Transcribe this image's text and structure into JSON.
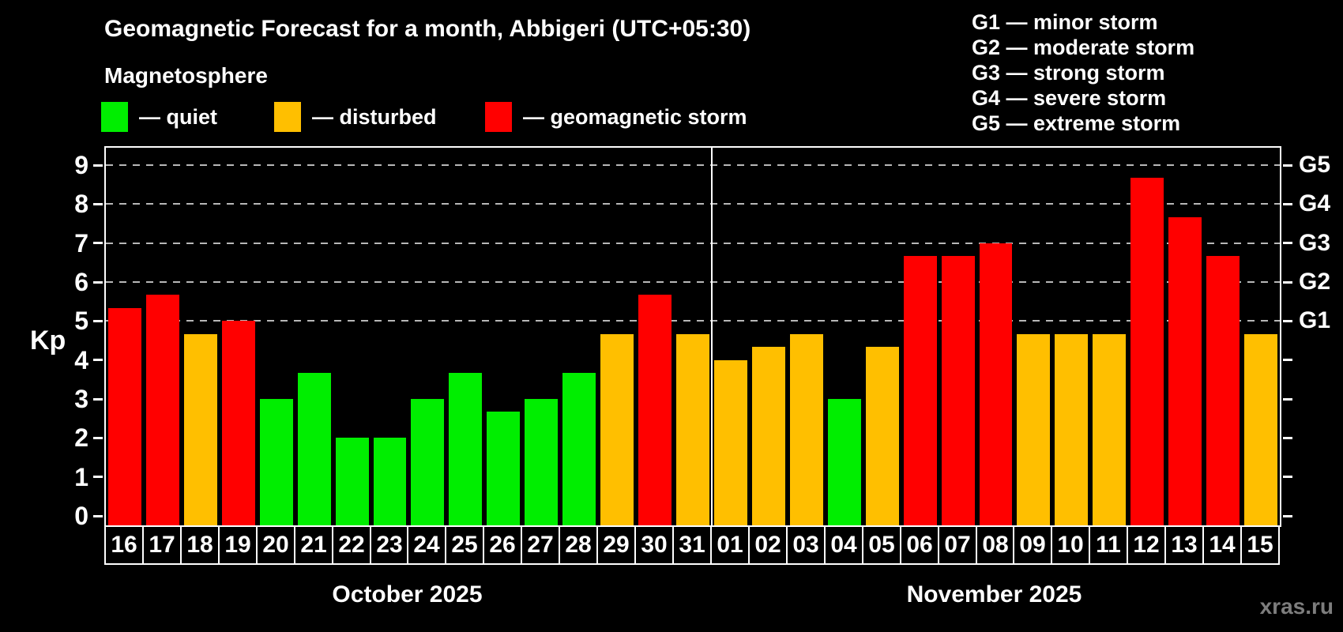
{
  "header": {
    "title": "Geomagnetic Forecast for a month, Abbigeri (UTC+05:30)",
    "subtitle": "Magnetosphere",
    "legend": [
      {
        "key": "quiet",
        "label": "— quiet",
        "color": "#00ee00"
      },
      {
        "key": "disturbed",
        "label": "— disturbed",
        "color": "#ffbf00"
      },
      {
        "key": "storm",
        "label": "— geomagnetic storm",
        "color": "#ff0000"
      }
    ],
    "g_legend": [
      "G1 — minor storm",
      "G2 — moderate storm",
      "G3 — strong storm",
      "G4 — severe storm",
      "G5 — extreme storm"
    ]
  },
  "chart_data": {
    "type": "bar",
    "title": "Geomagnetic Forecast for a month, Abbigeri (UTC+05:30)",
    "ylabel": "Kp",
    "ylim": [
      0,
      9
    ],
    "yticks": [
      0,
      1,
      2,
      3,
      4,
      5,
      6,
      7,
      8,
      9
    ],
    "gridlines_at_kp": [
      5,
      6,
      7,
      8,
      9
    ],
    "grid_style": "dashed",
    "right_axis": [
      {
        "kp": 5,
        "label": "G1"
      },
      {
        "kp": 6,
        "label": "G2"
      },
      {
        "kp": 7,
        "label": "G3"
      },
      {
        "kp": 8,
        "label": "G4"
      },
      {
        "kp": 9,
        "label": "G5"
      }
    ],
    "categories": [
      "16",
      "17",
      "18",
      "19",
      "20",
      "21",
      "22",
      "23",
      "24",
      "25",
      "26",
      "27",
      "28",
      "29",
      "30",
      "31",
      "01",
      "02",
      "03",
      "04",
      "05",
      "06",
      "07",
      "08",
      "09",
      "10",
      "11",
      "12",
      "13",
      "14",
      "15"
    ],
    "series": [
      {
        "name": "Kp forecast",
        "values": [
          5.33,
          5.67,
          4.67,
          5.0,
          3.0,
          3.67,
          2.0,
          2.0,
          3.0,
          3.67,
          2.67,
          3.0,
          3.67,
          4.67,
          5.67,
          4.67,
          4.0,
          4.33,
          4.67,
          3.0,
          4.33,
          6.67,
          6.67,
          7.0,
          4.67,
          4.67,
          4.67,
          8.67,
          7.67,
          6.67,
          4.67
        ]
      }
    ],
    "levels": [
      "storm",
      "storm",
      "disturbed",
      "storm",
      "quiet",
      "quiet",
      "quiet",
      "quiet",
      "quiet",
      "quiet",
      "quiet",
      "quiet",
      "quiet",
      "disturbed",
      "storm",
      "disturbed",
      "disturbed",
      "disturbed",
      "disturbed",
      "quiet",
      "disturbed",
      "storm",
      "storm",
      "storm",
      "disturbed",
      "disturbed",
      "disturbed",
      "storm",
      "storm",
      "storm",
      "disturbed"
    ],
    "colors": {
      "quiet": "#00ee00",
      "disturbed": "#ffbf00",
      "storm": "#ff0000"
    },
    "months": [
      {
        "label": "October 2025",
        "start_index": 0,
        "num_days": 16
      },
      {
        "label": "November 2025",
        "start_index": 16,
        "num_days": 15
      }
    ],
    "divider_after_index": 15
  },
  "watermark": "xras.ru"
}
